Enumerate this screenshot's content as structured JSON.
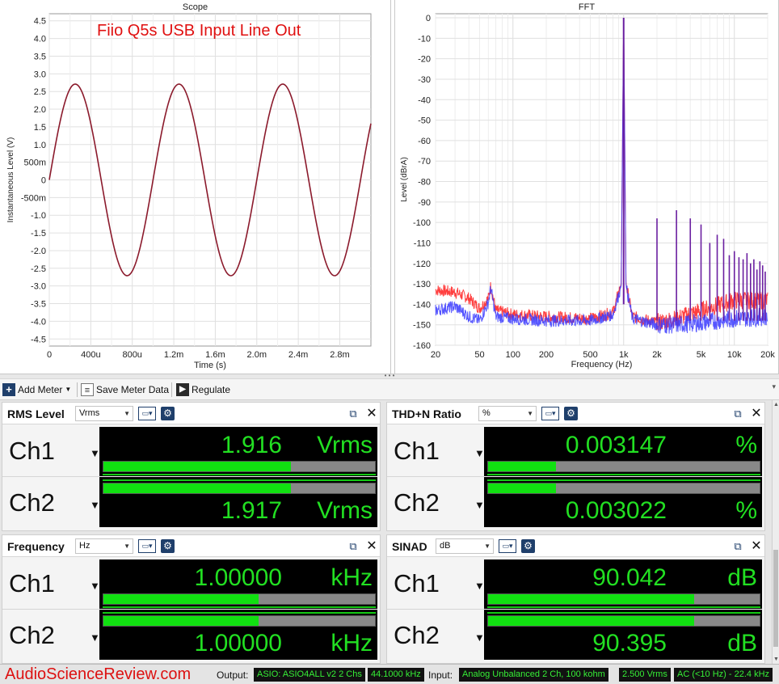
{
  "scope": {
    "title": "Scope",
    "annotation": "Fiio Q5s USB Input Line Out",
    "y_axis_label": "Instantaneous Level (V)",
    "x_axis_label": "Time (s)",
    "y_ticks": [
      "4.5",
      "4.0",
      "3.5",
      "3.0",
      "2.5",
      "2.0",
      "1.5",
      "1.0",
      "500m",
      "0",
      "-500m",
      "-1.0",
      "-1.5",
      "-2.0",
      "-2.5",
      "-3.0",
      "-3.5",
      "-4.0",
      "-4.5"
    ],
    "x_ticks": [
      "0",
      "400u",
      "800u",
      "1.2m",
      "1.6m",
      "2.0m",
      "2.4m",
      "2.8m"
    ]
  },
  "fft": {
    "title": "FFT",
    "y_axis_label": "Level (dBrA)",
    "x_axis_label": "Frequency (Hz)",
    "y_ticks": [
      "0",
      "-10",
      "-20",
      "-30",
      "-40",
      "-50",
      "-60",
      "-70",
      "-80",
      "-90",
      "-100",
      "-110",
      "-120",
      "-130",
      "-140",
      "-150",
      "-160"
    ],
    "x_ticks": [
      "20",
      "50",
      "100",
      "200",
      "500",
      "1k",
      "2k",
      "5k",
      "10k",
      "20k"
    ]
  },
  "chart_data": [
    {
      "type": "line",
      "title": "Scope",
      "xlabel": "Time (s)",
      "ylabel": "Instantaneous Level (V)",
      "xlim": [
        0,
        0.0031
      ],
      "ylim": [
        -4.7,
        4.7
      ],
      "grid": true,
      "series": [
        {
          "frequency_hz": 1000,
          "amplitude_v": 2.71,
          "color": "#8b1a2c"
        }
      ]
    },
    {
      "type": "line",
      "title": "FFT",
      "xlabel": "Frequency (Hz)",
      "ylabel": "Level (dBrA)",
      "x_scale": "log",
      "xlim": [
        20,
        20000
      ],
      "ylim": [
        -160,
        2
      ],
      "grid": true,
      "series": [
        {
          "color": "#ff2a2a",
          "x": [
            20,
            30,
            40,
            50,
            60,
            63,
            70,
            100,
            200,
            500,
            800,
            950,
            1000,
            1050,
            1200,
            2000,
            3000,
            5000,
            10000,
            20000
          ],
          "y": [
            -133,
            -134,
            -137,
            -142,
            -137,
            -131,
            -143,
            -145,
            -146,
            -147,
            -144,
            -130,
            0,
            -130,
            -146,
            -149,
            -147,
            -143,
            -138,
            -138
          ]
        },
        {
          "color": "#3a3aff",
          "x": [
            20,
            30,
            40,
            50,
            60,
            63,
            70,
            100,
            200,
            500,
            800,
            950,
            1000,
            1050,
            1200,
            2000,
            3000,
            5000,
            10000,
            20000
          ],
          "y": [
            -143,
            -141,
            -146,
            -148,
            -139,
            -132,
            -146,
            -147,
            -148,
            -148,
            -145,
            -131,
            0,
            -131,
            -147,
            -150,
            -150,
            -149,
            -147,
            -146
          ]
        }
      ],
      "harmonics": {
        "x": [
          2000,
          3000,
          4000,
          5000,
          6000,
          7000,
          8000,
          9000,
          10000,
          11000,
          12000,
          13000,
          14000,
          15000,
          16000,
          17000,
          18000,
          19000
        ],
        "y": [
          -98,
          -94,
          -98,
          -101,
          -110,
          -106,
          -108,
          -116,
          -114,
          -117,
          -118,
          -115,
          -120,
          -118,
          -123,
          -119,
          -121,
          -124
        ]
      }
    }
  ],
  "toolbar": {
    "add_meter": "Add Meter",
    "save_meter_data": "Save Meter Data",
    "regulate": "Regulate"
  },
  "meters": {
    "rms": {
      "name": "RMS Level",
      "unit_select": "Vrms",
      "ch1_value": "1.916",
      "ch1_unit": "Vrms",
      "ch2_value": "1.917",
      "ch2_unit": "Vrms",
      "ch1_bar": 0.69,
      "ch2_bar": 0.69
    },
    "thd": {
      "name": "THD+N Ratio",
      "unit_select": "%",
      "ch1_value": "0.003147",
      "ch1_unit": "%",
      "ch2_value": "0.003022",
      "ch2_unit": "%",
      "ch1_bar": 0.25,
      "ch2_bar": 0.25
    },
    "freq": {
      "name": "Frequency",
      "unit_select": "Hz",
      "ch1_value": "1.00000",
      "ch1_unit": "kHz",
      "ch2_value": "1.00000",
      "ch2_unit": "kHz",
      "ch1_bar": 0.57,
      "ch2_bar": 0.57
    },
    "sinad": {
      "name": "SINAD",
      "unit_select": "dB",
      "ch1_value": "90.042",
      "ch1_unit": "dB",
      "ch2_value": "90.395",
      "ch2_unit": "dB",
      "ch1_bar": 0.76,
      "ch2_bar": 0.76
    },
    "ch1_label": "Ch1",
    "ch2_label": "Ch2"
  },
  "status": {
    "watermark": "AudioScienceReview.com",
    "output_label": "Output:",
    "output_device": "ASIO: ASIO4ALL v2 2 Chs",
    "output_rate": "44.1000 kHz",
    "input_label": "Input:",
    "input_device": "Analog Unbalanced 2 Ch, 100 kohm",
    "input_range": "2.500 Vrms",
    "input_filter": "AC (<10 Hz) - 22.4 kHz"
  }
}
